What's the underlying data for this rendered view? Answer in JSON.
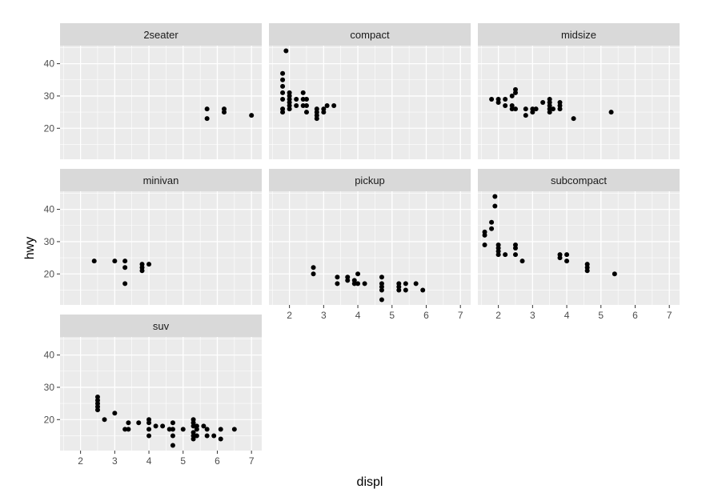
{
  "chart_data": {
    "type": "scatter",
    "facet_by": "class",
    "xlabel": "displ",
    "ylabel": "hwy",
    "xlim": [
      1.4,
      7.3
    ],
    "ylim": [
      10.4,
      45.6
    ],
    "xticks": [
      2,
      3,
      4,
      5,
      6,
      7
    ],
    "yticks": [
      20,
      30,
      40
    ],
    "grid": true,
    "colors": {
      "panel": "#ebebeb",
      "strip": "#d9d9d9",
      "point": "#000000",
      "grid": "#ffffff"
    },
    "facets": [
      {
        "label": "2seater",
        "points": [
          [
            5.7,
            26
          ],
          [
            5.7,
            23
          ],
          [
            6.2,
            26
          ],
          [
            6.2,
            25
          ],
          [
            7.0,
            24
          ]
        ]
      },
      {
        "label": "compact",
        "points": [
          [
            1.8,
            25
          ],
          [
            1.8,
            26
          ],
          [
            1.8,
            29
          ],
          [
            1.8,
            31
          ],
          [
            1.8,
            33
          ],
          [
            1.8,
            35
          ],
          [
            1.8,
            37
          ],
          [
            1.9,
            44
          ],
          [
            2.0,
            26
          ],
          [
            2.0,
            27
          ],
          [
            2.0,
            28
          ],
          [
            2.0,
            29
          ],
          [
            2.0,
            30
          ],
          [
            2.0,
            31
          ],
          [
            2.2,
            27
          ],
          [
            2.2,
            29
          ],
          [
            2.4,
            27
          ],
          [
            2.4,
            29
          ],
          [
            2.4,
            31
          ],
          [
            2.5,
            25
          ],
          [
            2.5,
            27
          ],
          [
            2.5,
            29
          ],
          [
            2.8,
            23
          ],
          [
            2.8,
            24
          ],
          [
            2.8,
            25
          ],
          [
            2.8,
            26
          ],
          [
            3.0,
            25
          ],
          [
            3.0,
            26
          ],
          [
            3.1,
            27
          ],
          [
            3.3,
            27
          ]
        ]
      },
      {
        "label": "midsize",
        "points": [
          [
            1.8,
            29
          ],
          [
            2.0,
            28
          ],
          [
            2.0,
            29
          ],
          [
            2.2,
            27
          ],
          [
            2.2,
            29
          ],
          [
            2.4,
            26
          ],
          [
            2.4,
            27
          ],
          [
            2.4,
            30
          ],
          [
            2.5,
            26
          ],
          [
            2.5,
            31
          ],
          [
            2.5,
            32
          ],
          [
            2.8,
            24
          ],
          [
            2.8,
            26
          ],
          [
            3.0,
            25
          ],
          [
            3.0,
            26
          ],
          [
            3.1,
            26
          ],
          [
            3.3,
            28
          ],
          [
            3.5,
            25
          ],
          [
            3.5,
            26
          ],
          [
            3.5,
            27
          ],
          [
            3.5,
            28
          ],
          [
            3.5,
            29
          ],
          [
            3.6,
            26
          ],
          [
            3.8,
            26
          ],
          [
            3.8,
            27
          ],
          [
            3.8,
            28
          ],
          [
            4.2,
            23
          ],
          [
            5.3,
            25
          ]
        ]
      },
      {
        "label": "minivan",
        "points": [
          [
            2.4,
            24
          ],
          [
            3.0,
            24
          ],
          [
            3.3,
            17
          ],
          [
            3.3,
            22
          ],
          [
            3.3,
            24
          ],
          [
            3.8,
            21
          ],
          [
            3.8,
            22
          ],
          [
            3.8,
            23
          ],
          [
            4.0,
            23
          ]
        ]
      },
      {
        "label": "pickup",
        "points": [
          [
            2.7,
            20
          ],
          [
            2.7,
            22
          ],
          [
            3.4,
            17
          ],
          [
            3.4,
            19
          ],
          [
            3.7,
            18
          ],
          [
            3.7,
            19
          ],
          [
            3.9,
            17
          ],
          [
            3.9,
            18
          ],
          [
            4.0,
            17
          ],
          [
            4.0,
            20
          ],
          [
            4.2,
            17
          ],
          [
            4.7,
            12
          ],
          [
            4.7,
            15
          ],
          [
            4.7,
            16
          ],
          [
            4.7,
            17
          ],
          [
            4.7,
            19
          ],
          [
            5.2,
            15
          ],
          [
            5.2,
            16
          ],
          [
            5.2,
            17
          ],
          [
            5.4,
            15
          ],
          [
            5.4,
            17
          ],
          [
            5.7,
            17
          ],
          [
            5.9,
            15
          ]
        ]
      },
      {
        "label": "subcompact",
        "points": [
          [
            1.6,
            29
          ],
          [
            1.6,
            32
          ],
          [
            1.6,
            33
          ],
          [
            1.8,
            34
          ],
          [
            1.8,
            36
          ],
          [
            1.9,
            41
          ],
          [
            1.9,
            44
          ],
          [
            2.0,
            26
          ],
          [
            2.0,
            27
          ],
          [
            2.0,
            28
          ],
          [
            2.0,
            29
          ],
          [
            2.2,
            26
          ],
          [
            2.5,
            26
          ],
          [
            2.5,
            28
          ],
          [
            2.5,
            29
          ],
          [
            2.7,
            24
          ],
          [
            3.8,
            25
          ],
          [
            3.8,
            26
          ],
          [
            4.0,
            24
          ],
          [
            4.0,
            26
          ],
          [
            4.6,
            21
          ],
          [
            4.6,
            22
          ],
          [
            4.6,
            23
          ],
          [
            5.4,
            20
          ]
        ]
      },
      {
        "label": "suv",
        "points": [
          [
            2.5,
            23
          ],
          [
            2.5,
            24
          ],
          [
            2.5,
            25
          ],
          [
            2.5,
            26
          ],
          [
            2.5,
            27
          ],
          [
            2.7,
            20
          ],
          [
            3.0,
            22
          ],
          [
            3.3,
            17
          ],
          [
            3.4,
            17
          ],
          [
            3.4,
            19
          ],
          [
            3.7,
            19
          ],
          [
            4.0,
            15
          ],
          [
            4.0,
            17
          ],
          [
            4.0,
            19
          ],
          [
            4.0,
            20
          ],
          [
            4.2,
            18
          ],
          [
            4.4,
            18
          ],
          [
            4.6,
            17
          ],
          [
            4.7,
            12
          ],
          [
            4.7,
            15
          ],
          [
            4.7,
            17
          ],
          [
            4.7,
            19
          ],
          [
            5.0,
            17
          ],
          [
            5.3,
            14
          ],
          [
            5.3,
            15
          ],
          [
            5.3,
            16
          ],
          [
            5.3,
            18
          ],
          [
            5.3,
            19
          ],
          [
            5.3,
            20
          ],
          [
            5.4,
            15
          ],
          [
            5.4,
            17
          ],
          [
            5.4,
            18
          ],
          [
            5.6,
            18
          ],
          [
            5.7,
            15
          ],
          [
            5.7,
            17
          ],
          [
            5.9,
            15
          ],
          [
            6.1,
            14
          ],
          [
            6.1,
            17
          ],
          [
            6.5,
            17
          ]
        ]
      }
    ]
  }
}
